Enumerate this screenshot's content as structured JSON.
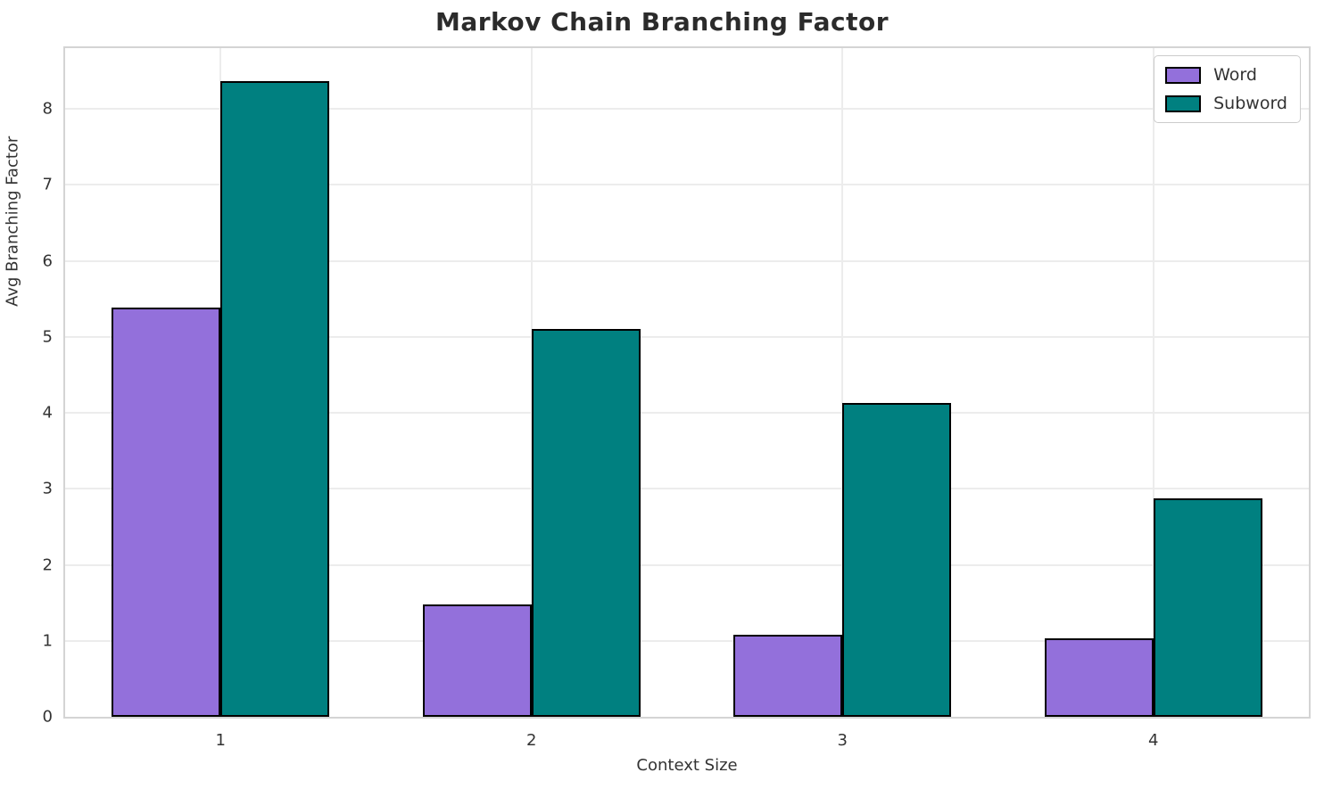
{
  "title": "Markov Chain Branching Factor",
  "chart_data": {
    "type": "bar",
    "title": "Markov Chain Branching Factor",
    "xlabel": "Context Size",
    "ylabel": "Avg Branching Factor",
    "categories": [
      "1",
      "2",
      "3",
      "4"
    ],
    "series": [
      {
        "name": "Word",
        "color": "#9370db",
        "values": [
          5.38,
          1.48,
          1.08,
          1.03
        ]
      },
      {
        "name": "Subword",
        "color": "#008080",
        "values": [
          8.37,
          5.1,
          4.13,
          2.87
        ]
      }
    ],
    "ylim": [
      0,
      8.8
    ],
    "yticks": [
      0,
      1,
      2,
      3,
      4,
      5,
      6,
      7,
      8
    ],
    "grid": true,
    "legend_position": "upper right",
    "bar_edge_color": "#000000",
    "bar_width_fraction": 0.35
  }
}
